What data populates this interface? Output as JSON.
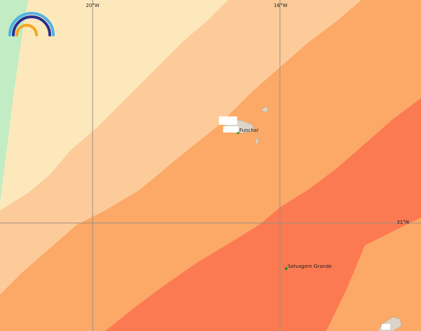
{
  "grid_labels": {
    "longitudes": [
      "20°W",
      "16°W"
    ],
    "latitudes": [
      "31°N"
    ]
  },
  "places": [
    {
      "name": "Funchal"
    },
    {
      "name": "Selvagem Grande"
    }
  ]
}
